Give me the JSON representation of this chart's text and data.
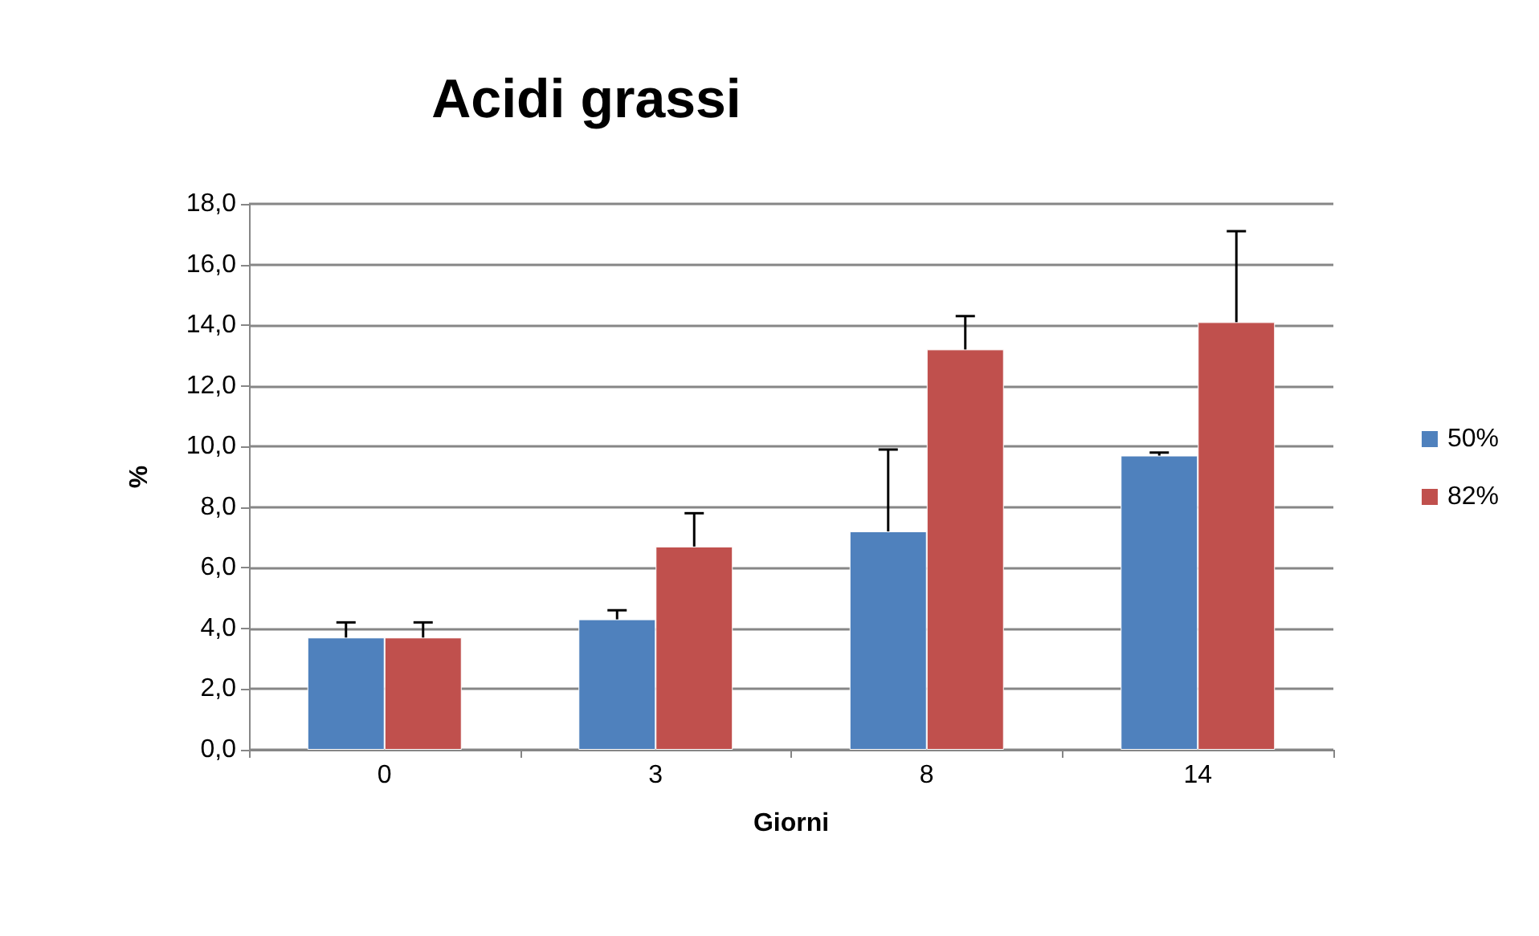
{
  "chart_data": {
    "type": "bar",
    "title": "Acidi grassi",
    "xlabel": "Giorni",
    "ylabel": "%",
    "categories": [
      "0",
      "3",
      "8",
      "14"
    ],
    "series": [
      {
        "name": "50%",
        "color": "#4f81bd",
        "values": [
          3.7,
          4.3,
          7.2,
          9.7
        ],
        "errors": [
          [
            3.7,
            4.2
          ],
          [
            4.3,
            4.6
          ],
          [
            7.2,
            9.9
          ],
          [
            9.7,
            9.8
          ]
        ]
      },
      {
        "name": "82%",
        "color": "#c0504d",
        "values": [
          3.7,
          6.7,
          13.2,
          14.1
        ],
        "errors": [
          [
            3.7,
            4.2
          ],
          [
            6.7,
            7.8
          ],
          [
            13.2,
            14.3
          ],
          [
            14.1,
            17.1
          ]
        ]
      }
    ],
    "ylim": [
      0,
      18
    ],
    "yticks": [
      {
        "value": 0,
        "label": "0,0"
      },
      {
        "value": 2,
        "label": "2,0"
      },
      {
        "value": 4,
        "label": "4,0"
      },
      {
        "value": 6,
        "label": "6,0"
      },
      {
        "value": 8,
        "label": "8,0"
      },
      {
        "value": 10,
        "label": "10,0"
      },
      {
        "value": 12,
        "label": "12,0"
      },
      {
        "value": 14,
        "label": "14,0"
      },
      {
        "value": 16,
        "label": "16,0"
      },
      {
        "value": 18,
        "label": "18,0"
      }
    ],
    "grid": "y",
    "legend": "right"
  }
}
